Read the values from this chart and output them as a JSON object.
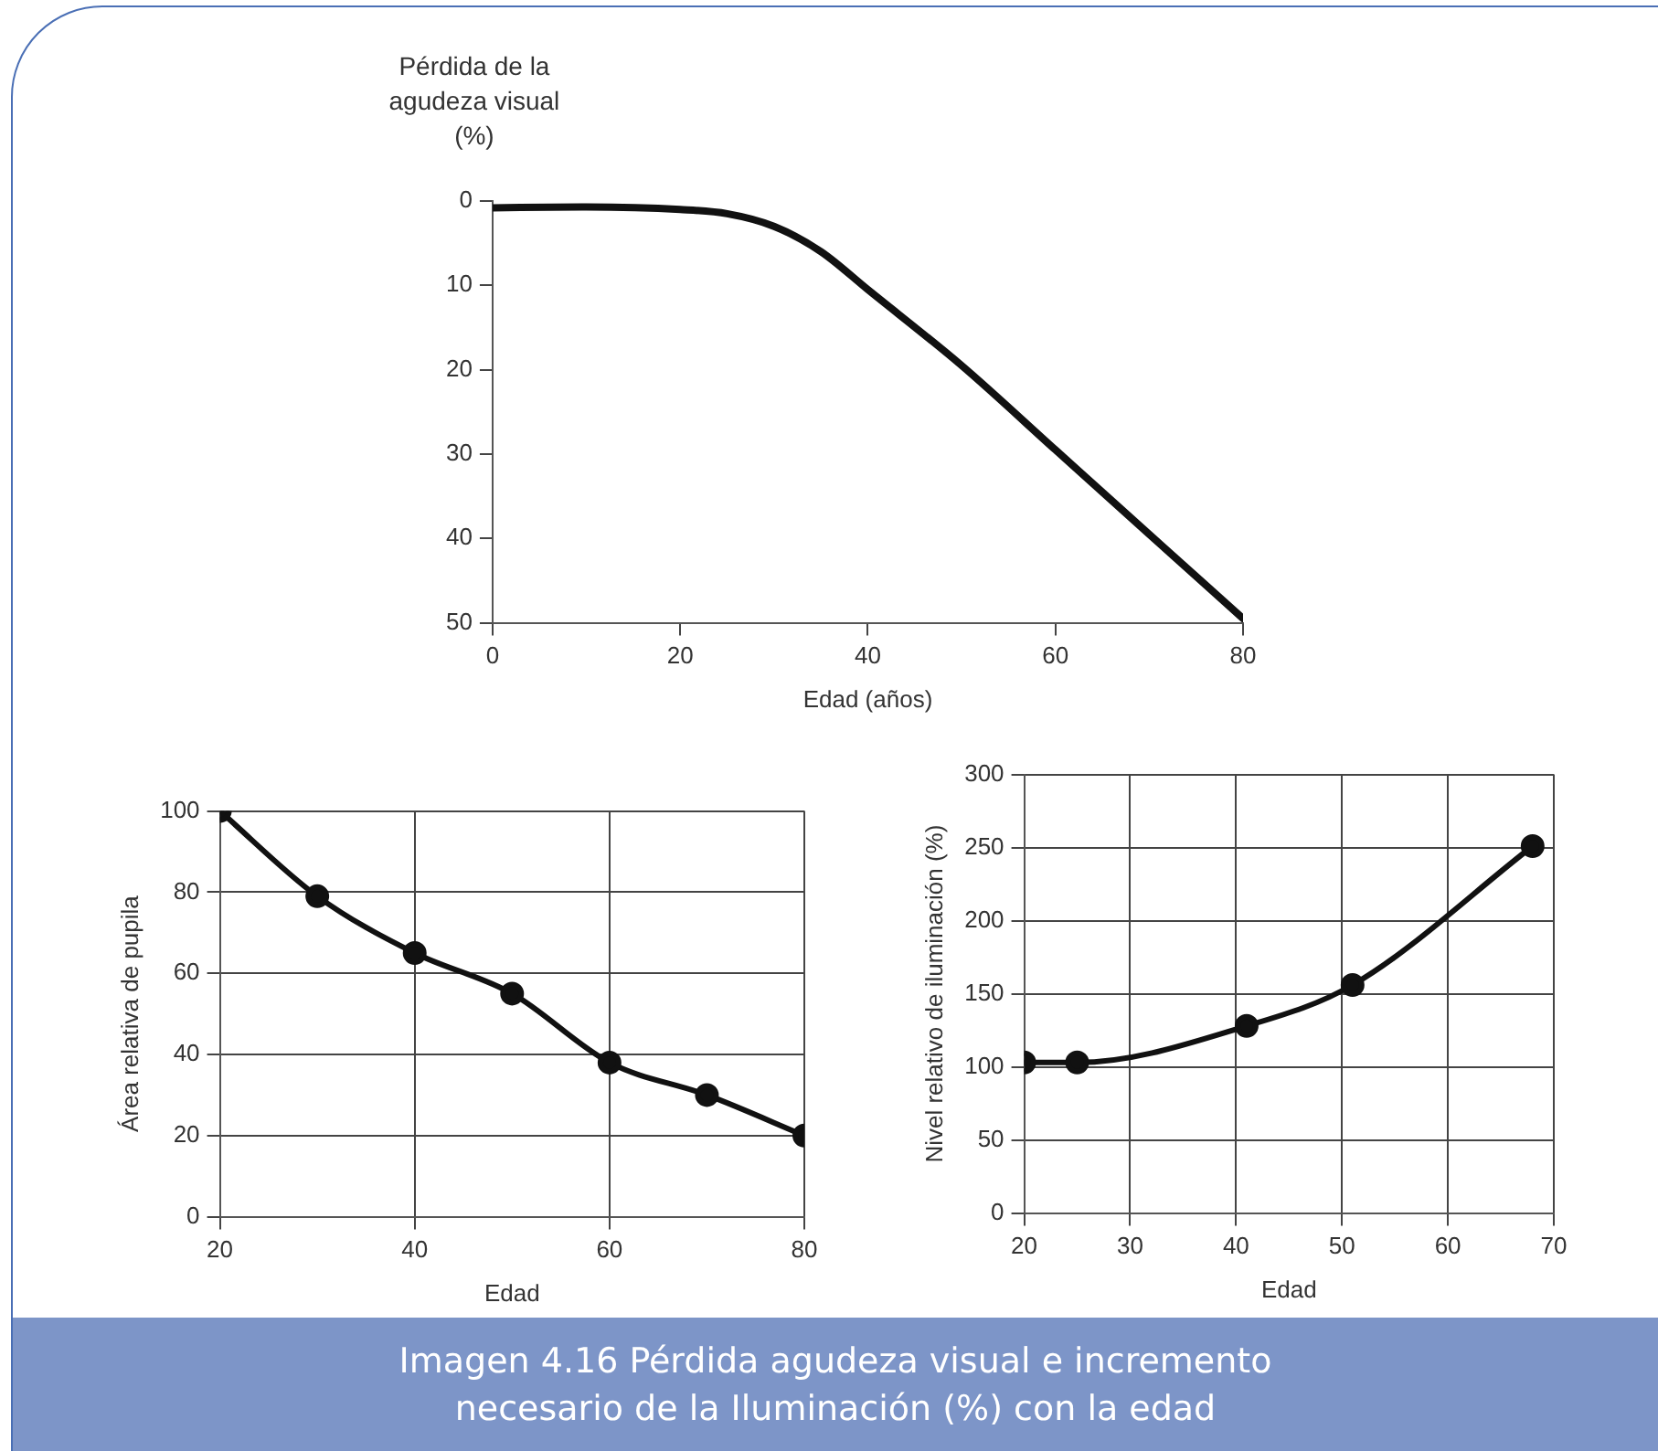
{
  "chart_data": [
    {
      "type": "line",
      "ylabel": "Pérdida de la agudeza visual (%)",
      "xlabel": "Edad (años)",
      "x": [
        0,
        10,
        20,
        25,
        30,
        35,
        40,
        50,
        60,
        70,
        80
      ],
      "values": [
        0.8,
        0.7,
        1,
        1.5,
        3,
        6,
        10.5,
        19.5,
        29.5,
        39.5,
        49.5
      ],
      "color": "#111111",
      "xlim": [
        0,
        80
      ],
      "xticks": [
        0,
        20,
        40,
        60,
        80
      ],
      "ylim": [
        50,
        0
      ],
      "yticks": [
        0,
        10,
        20,
        30,
        40,
        50
      ],
      "grid": false,
      "marker": "none",
      "annotations": [
        "Imagen 4.16  Pérdida agudeza visual e incremento necesario de la Iluminación (%) con la edad"
      ]
    },
    {
      "type": "line",
      "ylabel": "Área relativa de pupila",
      "xlabel": "Edad",
      "x": [
        20,
        30,
        40,
        50,
        60,
        70,
        80
      ],
      "values": [
        100,
        79,
        65,
        55,
        38,
        30,
        20
      ],
      "color": "#111111",
      "xlim": [
        20,
        80
      ],
      "xticks": [
        20,
        40,
        60,
        80
      ],
      "ylim": [
        0,
        100
      ],
      "yticks": [
        0,
        20,
        40,
        60,
        80,
        100
      ],
      "grid": true,
      "marker": "circle"
    },
    {
      "type": "line",
      "ylabel": "Nivel relativo de iluminación (%)",
      "xlabel": "Edad",
      "x": [
        20,
        25,
        41,
        51,
        68
      ],
      "values": [
        103,
        103,
        128,
        156,
        251
      ],
      "color": "#111111",
      "xlim": [
        20,
        70
      ],
      "xticks": [
        20,
        30,
        40,
        50,
        60,
        70
      ],
      "ylim": [
        0,
        300
      ],
      "yticks": [
        0,
        50,
        100,
        150,
        200,
        250,
        300
      ],
      "grid": true,
      "marker": "circle"
    }
  ]
}
